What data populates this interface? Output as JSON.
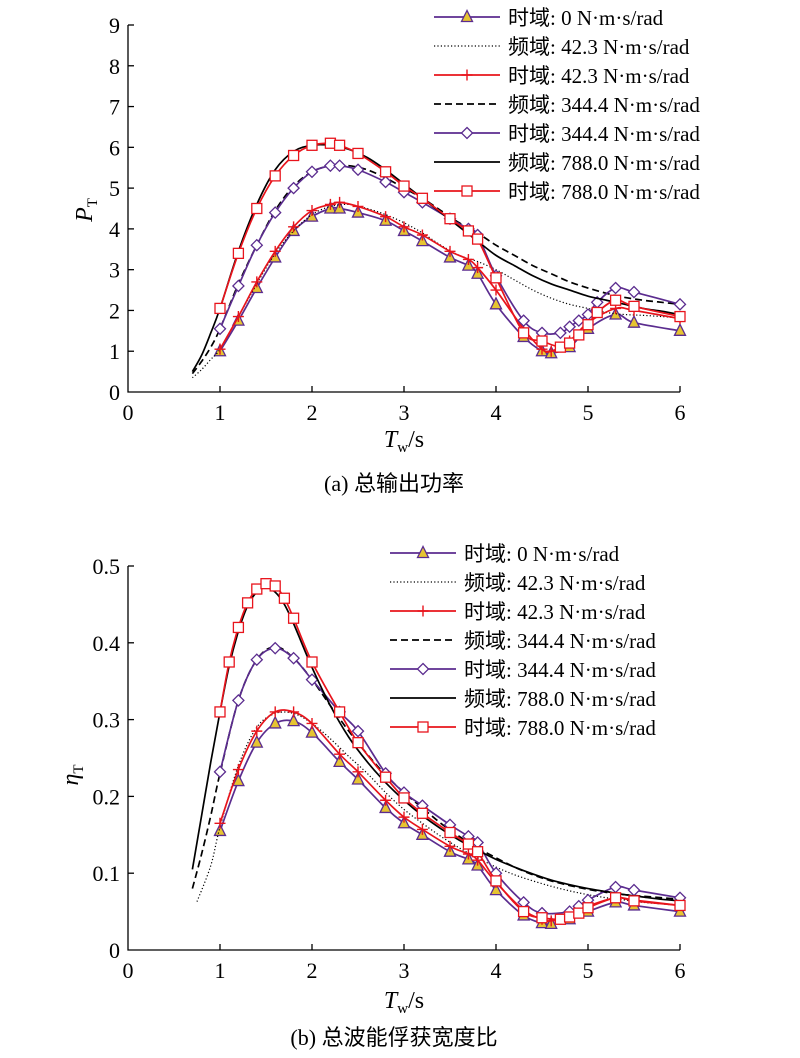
{
  "chart_data": [
    {
      "type": "line",
      "caption": "(a) 总输出功率",
      "ylabel": "P",
      "ylabel_sub": "T",
      "xlabel": "T",
      "xlabel_sub": "w",
      "xlabel_unit": "/s",
      "xlim": [
        0,
        6
      ],
      "ylim": [
        0,
        9
      ],
      "xticks": [
        "0",
        "1",
        "2",
        "3",
        "4",
        "5",
        "6"
      ],
      "yticks": [
        "0",
        "1",
        "2",
        "3",
        "4",
        "5",
        "6",
        "7",
        "8",
        "9"
      ],
      "grid": false,
      "legend_position": "top-right",
      "series": [
        {
          "name": "时域: 0 N·m·s/rad",
          "color": "#5b2c8f",
          "line": "solid",
          "marker": "triangle",
          "x": [
            1.0,
            1.2,
            1.4,
            1.6,
            1.8,
            2.0,
            2.2,
            2.3,
            2.5,
            2.8,
            3.0,
            3.2,
            3.5,
            3.7,
            3.8,
            4.0,
            4.3,
            4.5,
            4.6,
            4.8,
            5.0,
            5.3,
            5.5,
            6.0
          ],
          "y": [
            1.0,
            1.75,
            2.55,
            3.3,
            3.95,
            4.3,
            4.5,
            4.5,
            4.4,
            4.2,
            3.95,
            3.7,
            3.3,
            3.1,
            2.9,
            2.15,
            1.35,
            1.0,
            0.95,
            1.1,
            1.55,
            1.9,
            1.7,
            1.5
          ]
        },
        {
          "name": "频域: 42.3 N·m·s/rad",
          "color": "#000000",
          "line": "dotted",
          "marker": "none",
          "x": [
            0.7,
            0.8,
            0.9,
            1.0,
            1.2,
            1.4,
            1.6,
            1.8,
            2.0,
            2.2,
            2.4,
            2.6,
            2.8,
            3.0,
            3.2,
            3.4,
            3.6,
            3.8,
            4.0,
            4.2,
            4.4,
            4.6,
            4.8,
            5.0,
            5.2,
            5.4,
            5.6,
            5.8,
            6.0
          ],
          "y": [
            0.35,
            0.55,
            0.8,
            1.05,
            1.85,
            2.65,
            3.4,
            3.95,
            4.35,
            4.55,
            4.6,
            4.5,
            4.35,
            4.15,
            3.9,
            3.6,
            3.35,
            3.2,
            3.0,
            2.75,
            2.5,
            2.3,
            2.15,
            2.05,
            1.95,
            1.9,
            1.88,
            1.85,
            1.82
          ]
        },
        {
          "name": "时域: 42.3 N·m·s/rad",
          "color": "#e8141c",
          "line": "solid",
          "marker": "plus",
          "x": [
            1.0,
            1.2,
            1.4,
            1.6,
            1.8,
            2.0,
            2.2,
            2.3,
            2.5,
            2.8,
            3.0,
            3.2,
            3.5,
            3.7,
            3.8,
            4.0,
            4.3,
            4.5,
            4.6,
            4.8,
            5.0,
            5.3,
            5.5,
            6.0
          ],
          "y": [
            1.05,
            1.85,
            2.7,
            3.45,
            4.05,
            4.45,
            4.6,
            4.65,
            4.55,
            4.3,
            4.05,
            3.85,
            3.45,
            3.25,
            3.05,
            2.5,
            1.55,
            1.05,
            1.0,
            1.25,
            1.7,
            2.05,
            2.0,
            1.8
          ]
        },
        {
          "name": "频域: 344.4 N·m·s/rad",
          "color": "#000000",
          "line": "dashed",
          "marker": "none",
          "x": [
            0.7,
            0.8,
            0.9,
            1.0,
            1.2,
            1.4,
            1.6,
            1.8,
            2.0,
            2.2,
            2.4,
            2.6,
            2.8,
            3.0,
            3.2,
            3.4,
            3.6,
            3.8,
            4.0,
            4.2,
            4.4,
            4.6,
            4.8,
            5.0,
            5.2,
            5.4,
            5.6,
            5.8,
            6.0
          ],
          "y": [
            0.45,
            0.75,
            1.1,
            1.55,
            2.65,
            3.6,
            4.45,
            5.05,
            5.4,
            5.55,
            5.55,
            5.45,
            5.25,
            5.0,
            4.75,
            4.45,
            4.15,
            3.9,
            3.6,
            3.35,
            3.1,
            2.9,
            2.7,
            2.55,
            2.42,
            2.32,
            2.25,
            2.2,
            2.15
          ]
        },
        {
          "name": "时域: 344.4 N·m·s/rad",
          "color": "#5b2c8f",
          "line": "solid",
          "marker": "diamond",
          "x": [
            1.0,
            1.2,
            1.4,
            1.6,
            1.8,
            2.0,
            2.2,
            2.3,
            2.5,
            2.8,
            3.0,
            3.2,
            3.5,
            3.7,
            3.8,
            4.0,
            4.3,
            4.5,
            4.7,
            4.8,
            4.9,
            5.0,
            5.1,
            5.3,
            5.5,
            6.0
          ],
          "y": [
            1.55,
            2.6,
            3.6,
            4.4,
            5.0,
            5.4,
            5.55,
            5.55,
            5.45,
            5.15,
            4.9,
            4.65,
            4.25,
            4.0,
            3.85,
            2.85,
            1.75,
            1.45,
            1.45,
            1.6,
            1.75,
            1.9,
            2.2,
            2.55,
            2.45,
            2.15
          ]
        },
        {
          "name": "频域: 788.0 N·m·s/rad",
          "color": "#000000",
          "line": "solid",
          "marker": "none",
          "x": [
            0.7,
            0.8,
            0.9,
            1.0,
            1.2,
            1.4,
            1.6,
            1.8,
            2.0,
            2.2,
            2.4,
            2.6,
            2.8,
            3.0,
            3.2,
            3.4,
            3.6,
            3.8,
            4.0,
            4.2,
            4.4,
            4.6,
            4.8,
            5.0,
            5.2,
            5.4,
            5.6,
            5.8,
            6.0
          ],
          "y": [
            0.5,
            0.9,
            1.45,
            2.05,
            3.45,
            4.6,
            5.45,
            5.9,
            6.05,
            6.05,
            5.95,
            5.75,
            5.45,
            5.1,
            4.75,
            4.4,
            4.05,
            3.7,
            3.35,
            3.1,
            2.85,
            2.65,
            2.5,
            2.35,
            2.25,
            2.15,
            2.05,
            1.98,
            1.9
          ]
        },
        {
          "name": "时域: 788.0 N·m·s/rad",
          "color": "#e8141c",
          "line": "solid",
          "marker": "square",
          "x": [
            1.0,
            1.2,
            1.4,
            1.6,
            1.8,
            2.0,
            2.2,
            2.3,
            2.5,
            2.8,
            3.0,
            3.2,
            3.5,
            3.7,
            3.8,
            4.0,
            4.3,
            4.5,
            4.7,
            4.8,
            4.9,
            5.0,
            5.1,
            5.3,
            5.5,
            6.0
          ],
          "y": [
            2.05,
            3.4,
            4.5,
            5.3,
            5.8,
            6.05,
            6.1,
            6.05,
            5.85,
            5.4,
            5.05,
            4.75,
            4.25,
            3.95,
            3.75,
            2.8,
            1.45,
            1.25,
            1.1,
            1.2,
            1.4,
            1.65,
            1.95,
            2.25,
            2.1,
            1.85
          ]
        }
      ]
    },
    {
      "type": "line",
      "caption": "(b) 总波能俘获宽度比",
      "ylabel": "η",
      "ylabel_sub": "T",
      "xlabel": "T",
      "xlabel_sub": "w",
      "xlabel_unit": "/s",
      "xlim": [
        0,
        6
      ],
      "ylim": [
        0,
        0.5
      ],
      "xticks": [
        "0",
        "1",
        "2",
        "3",
        "4",
        "5",
        "6"
      ],
      "yticks": [
        "0",
        "0.1",
        "0.2",
        "0.3",
        "0.4",
        "0.5"
      ],
      "grid": false,
      "legend_position": "top-right",
      "series": [
        {
          "name": "时域: 0 N·m·s/rad",
          "color": "#5b2c8f",
          "line": "solid",
          "marker": "triangle",
          "x": [
            1.0,
            1.2,
            1.4,
            1.6,
            1.8,
            2.0,
            2.3,
            2.5,
            2.8,
            3.0,
            3.2,
            3.5,
            3.7,
            3.8,
            4.0,
            4.3,
            4.5,
            4.6,
            4.8,
            5.0,
            5.3,
            5.5,
            6.0
          ],
          "y": [
            0.155,
            0.22,
            0.27,
            0.295,
            0.298,
            0.283,
            0.245,
            0.222,
            0.185,
            0.165,
            0.15,
            0.128,
            0.118,
            0.11,
            0.078,
            0.045,
            0.035,
            0.034,
            0.04,
            0.05,
            0.062,
            0.058,
            0.05
          ]
        },
        {
          "name": "频域: 42.3 N·m·s/rad",
          "color": "#000000",
          "line": "dotted",
          "marker": "none",
          "x": [
            0.75,
            0.9,
            1.0,
            1.2,
            1.4,
            1.6,
            1.8,
            2.0,
            2.2,
            2.4,
            2.6,
            2.8,
            3.0,
            3.2,
            3.4,
            3.6,
            3.8,
            4.0,
            4.2,
            4.4,
            4.6,
            4.8,
            5.0,
            5.2,
            5.4,
            5.6,
            5.8,
            6.0
          ],
          "y": [
            0.063,
            0.11,
            0.16,
            0.24,
            0.29,
            0.308,
            0.308,
            0.295,
            0.275,
            0.252,
            0.23,
            0.205,
            0.183,
            0.165,
            0.148,
            0.133,
            0.12,
            0.108,
            0.098,
            0.09,
            0.083,
            0.077,
            0.072,
            0.068,
            0.065,
            0.062,
            0.06,
            0.058
          ]
        },
        {
          "name": "时域: 42.3 N·m·s/rad",
          "color": "#e8141c",
          "line": "solid",
          "marker": "plus",
          "x": [
            1.0,
            1.2,
            1.4,
            1.6,
            1.8,
            2.0,
            2.3,
            2.5,
            2.8,
            3.0,
            3.2,
            3.5,
            3.7,
            3.8,
            4.0,
            4.3,
            4.5,
            4.6,
            4.8,
            5.0,
            5.3,
            5.5,
            6.0
          ],
          "y": [
            0.165,
            0.235,
            0.285,
            0.31,
            0.31,
            0.295,
            0.255,
            0.232,
            0.195,
            0.173,
            0.157,
            0.135,
            0.125,
            0.117,
            0.088,
            0.052,
            0.04,
            0.038,
            0.046,
            0.057,
            0.068,
            0.065,
            0.058
          ]
        },
        {
          "name": "频域: 344.4 N·m·s/rad",
          "color": "#000000",
          "line": "dashed",
          "marker": "none",
          "x": [
            0.7,
            0.8,
            0.9,
            1.0,
            1.2,
            1.4,
            1.6,
            1.8,
            2.0,
            2.2,
            2.4,
            2.6,
            2.8,
            3.0,
            3.2,
            3.4,
            3.6,
            3.8,
            4.0,
            4.2,
            4.4,
            4.6,
            4.8,
            5.0,
            5.2,
            5.4,
            5.6,
            5.8,
            6.0
          ],
          "y": [
            0.08,
            0.125,
            0.175,
            0.23,
            0.325,
            0.378,
            0.395,
            0.38,
            0.352,
            0.318,
            0.285,
            0.255,
            0.228,
            0.205,
            0.185,
            0.165,
            0.148,
            0.133,
            0.12,
            0.108,
            0.098,
            0.09,
            0.084,
            0.079,
            0.075,
            0.072,
            0.07,
            0.068,
            0.066
          ]
        },
        {
          "name": "时域: 344.4 N·m·s/rad",
          "color": "#5b2c8f",
          "line": "solid",
          "marker": "diamond",
          "x": [
            1.0,
            1.2,
            1.4,
            1.6,
            1.8,
            2.0,
            2.3,
            2.5,
            2.8,
            3.0,
            3.2,
            3.5,
            3.7,
            3.8,
            4.0,
            4.3,
            4.5,
            4.8,
            4.9,
            5.0,
            5.3,
            5.5,
            6.0
          ],
          "y": [
            0.232,
            0.325,
            0.378,
            0.393,
            0.38,
            0.352,
            0.31,
            0.285,
            0.23,
            0.205,
            0.188,
            0.163,
            0.148,
            0.14,
            0.1,
            0.062,
            0.048,
            0.05,
            0.057,
            0.065,
            0.082,
            0.078,
            0.068
          ]
        },
        {
          "name": "频域: 788.0 N·m·s/rad",
          "color": "#000000",
          "line": "solid",
          "marker": "none",
          "x": [
            0.7,
            0.8,
            0.9,
            1.0,
            1.1,
            1.2,
            1.3,
            1.4,
            1.5,
            1.6,
            1.7,
            1.8,
            2.0,
            2.2,
            2.4,
            2.6,
            2.8,
            3.0,
            3.2,
            3.4,
            3.6,
            3.8,
            4.0,
            4.2,
            4.4,
            4.6,
            4.8,
            5.0,
            5.2,
            5.4,
            5.6,
            5.8,
            6.0
          ],
          "y": [
            0.105,
            0.175,
            0.245,
            0.31,
            0.37,
            0.415,
            0.448,
            0.466,
            0.472,
            0.466,
            0.45,
            0.425,
            0.368,
            0.318,
            0.277,
            0.245,
            0.218,
            0.195,
            0.175,
            0.158,
            0.143,
            0.13,
            0.118,
            0.108,
            0.099,
            0.091,
            0.085,
            0.08,
            0.076,
            0.072,
            0.069,
            0.066,
            0.064
          ]
        },
        {
          "name": "时域: 788.0 N·m·s/rad",
          "color": "#e8141c",
          "line": "solid",
          "marker": "square",
          "x": [
            1.0,
            1.1,
            1.2,
            1.3,
            1.4,
            1.5,
            1.6,
            1.7,
            1.8,
            2.0,
            2.3,
            2.5,
            2.8,
            3.0,
            3.2,
            3.5,
            3.7,
            3.8,
            4.0,
            4.3,
            4.5,
            4.7,
            4.8,
            4.9,
            5.0,
            5.3,
            5.5,
            6.0
          ],
          "y": [
            0.31,
            0.375,
            0.42,
            0.452,
            0.47,
            0.477,
            0.474,
            0.458,
            0.432,
            0.375,
            0.31,
            0.27,
            0.225,
            0.198,
            0.178,
            0.153,
            0.138,
            0.128,
            0.09,
            0.05,
            0.042,
            0.04,
            0.043,
            0.048,
            0.055,
            0.068,
            0.064,
            0.058
          ]
        }
      ]
    }
  ]
}
